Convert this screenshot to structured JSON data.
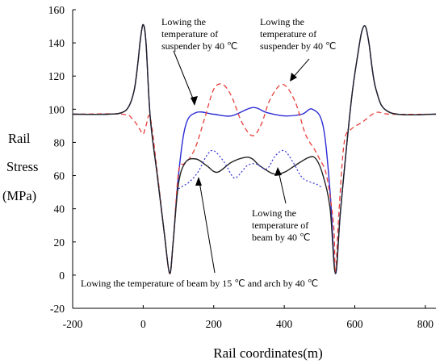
{
  "chart_data": {
    "type": "line",
    "xlabel": "Rail coordinates(m)",
    "ylabel": [
      "Rail",
      "Stress",
      "(MPa)"
    ],
    "xlim": [
      -200,
      830
    ],
    "ylim": [
      -20,
      160
    ],
    "xticks": [
      "-200",
      "0",
      "200",
      "400",
      "600",
      "800"
    ],
    "yticks": [
      "-20",
      "0",
      "20",
      "40",
      "60",
      "80",
      "100",
      "120",
      "140",
      "160"
    ],
    "grid": false,
    "legend": "none",
    "series": [
      {
        "key": "suspender_blue",
        "color": "#2b2bd4",
        "dash": "solid",
        "x": [
          -200,
          -100,
          -60,
          -40,
          -25,
          -15,
          -8,
          0,
          8,
          20,
          40,
          60,
          75,
          85,
          100,
          120,
          150,
          200,
          250,
          310,
          350,
          400,
          450,
          480,
          510,
          530,
          545,
          560,
          590,
          610,
          620,
          630,
          640,
          660,
          700,
          830
        ],
        "y": [
          97,
          97,
          98,
          102,
          112,
          128,
          142,
          151,
          140,
          95,
          60,
          25,
          1,
          20,
          60,
          90,
          98,
          97,
          96,
          101,
          98,
          96,
          97,
          100,
          90,
          50,
          1,
          40,
          105,
          135,
          147,
          150,
          140,
          112,
          98,
          97
        ]
      },
      {
        "key": "suspender_red",
        "color": "#e8403c",
        "dash": "dashed",
        "x": [
          -200,
          -60,
          -30,
          -10,
          0,
          8,
          20,
          40,
          60,
          75,
          85,
          100,
          115,
          130,
          150,
          175,
          200,
          225,
          250,
          280,
          310,
          335,
          360,
          395,
          430,
          460,
          485,
          500,
          520,
          540,
          545,
          555,
          570,
          590,
          620,
          660,
          700,
          830
        ],
        "y": [
          97,
          97,
          94,
          88,
          85,
          90,
          95,
          62,
          25,
          1,
          20,
          62,
          67,
          70,
          78,
          95,
          112,
          115,
          108,
          92,
          84,
          91,
          106,
          115,
          105,
          85,
          76,
          70,
          60,
          30,
          1,
          38,
          80,
          88,
          92,
          98,
          97,
          97
        ]
      },
      {
        "key": "beam_black",
        "color": "#222222",
        "dash": "solid",
        "x": [
          -200,
          -100,
          -60,
          -40,
          -25,
          -15,
          -8,
          0,
          8,
          20,
          40,
          60,
          75,
          85,
          100,
          120,
          150,
          180,
          210,
          250,
          290,
          310,
          330,
          370,
          400,
          430,
          470,
          490,
          510,
          530,
          545,
          560,
          590,
          610,
          620,
          630,
          640,
          660,
          700,
          830
        ],
        "y": [
          97,
          97,
          98,
          102,
          112,
          128,
          142,
          151,
          140,
          95,
          60,
          25,
          1,
          20,
          55,
          68,
          70,
          66,
          62,
          68,
          71,
          70,
          66,
          61,
          62,
          66,
          71,
          70,
          60,
          40,
          1,
          40,
          105,
          135,
          147,
          150,
          140,
          112,
          98,
          97
        ]
      },
      {
        "key": "beam_blue_dotted",
        "color": "#3b3bd8",
        "dash": "dotted",
        "x": [
          100,
          115,
          130,
          155,
          180,
          200,
          230,
          255,
          270,
          295,
          320,
          350,
          375,
          400,
          425,
          450,
          475,
          490,
          505
        ],
        "y": [
          52,
          54,
          56,
          62,
          72,
          75,
          68,
          59,
          60,
          66,
          67,
          64,
          72,
          75,
          68,
          59,
          56,
          55,
          53
        ]
      }
    ],
    "annotations": [
      {
        "lines": [
          "Lowing the",
          "temperature of",
          "suspender by 40 ℃"
        ]
      },
      {
        "lines": [
          "Lowing the",
          "temperature of",
          "suspender by 40 ℃"
        ]
      },
      {
        "lines": [
          "Lowing the",
          "temperature of",
          "beam by 40 ℃"
        ]
      },
      {
        "lines": [
          "Lowing the temperature of beam by 15 ℃ and arch by 40 ℃"
        ]
      }
    ]
  }
}
